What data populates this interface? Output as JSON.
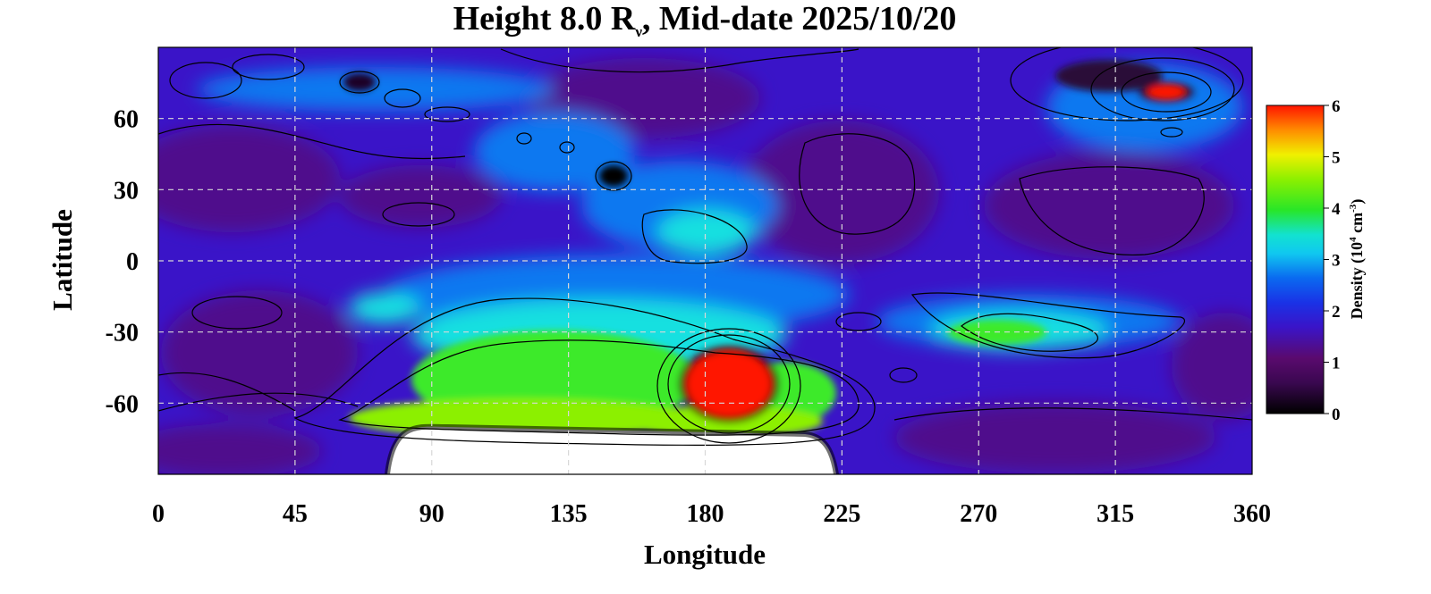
{
  "chart_data": {
    "type": "heatmap",
    "title": {
      "prefix": "Height 8.0 R",
      "subscript": "ν",
      "suffix": ", Mid-date 2025/10/20"
    },
    "xlabel": "Longitude",
    "ylabel": "Latitude",
    "xlim": [
      0,
      360
    ],
    "ylim": [
      -90,
      90
    ],
    "xticks": [
      0,
      45,
      90,
      135,
      180,
      225,
      270,
      315,
      360
    ],
    "yticks": [
      60,
      30,
      0,
      -30,
      -60
    ],
    "xtick_labels": [
      "0",
      "45",
      "90",
      "135",
      "180",
      "225",
      "270",
      "315",
      "360"
    ],
    "ytick_labels": [
      "60",
      "30",
      "0",
      "-30",
      "-60"
    ],
    "grid": true,
    "colorbar": {
      "title": "Density (10",
      "title_sup": "4",
      "title_mid": " cm",
      "title_sup2": "-3",
      "title_end": ")",
      "range": [
        0,
        6
      ],
      "ticks": [
        0,
        1,
        2,
        3,
        4,
        5,
        6
      ],
      "tick_labels": [
        "0",
        "1",
        "2",
        "3",
        "4",
        "5",
        "6"
      ],
      "colormap": [
        "#000000",
        "#5a0a6e",
        "#3a14c8",
        "#0a5af0",
        "#10dcf0",
        "#28e628",
        "#e6f000",
        "#ff8c00",
        "#ff1400"
      ]
    },
    "no_data_color": "#ffffff",
    "features": [
      {
        "lon": 195,
        "lat": -48,
        "value": 6.0
      },
      {
        "lon": 330,
        "lat": 72,
        "value": 6.0
      },
      {
        "lon": 135,
        "lat": -50,
        "value": 4.0
      },
      {
        "lon": 110,
        "lat": -68,
        "value": 4.0
      },
      {
        "lon": 275,
        "lat": -30,
        "value": 3.5
      },
      {
        "lon": 170,
        "lat": 10,
        "value": 2.8
      },
      {
        "lon": 150,
        "lat": 35,
        "value": 0.3
      }
    ]
  }
}
